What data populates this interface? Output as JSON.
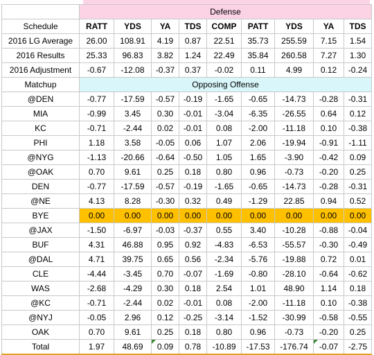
{
  "sections": {
    "defense_label": "Defense",
    "opposing_label": "Opposing Offense"
  },
  "columns": [
    "Schedule",
    "RATT",
    "YDS",
    "YA",
    "TDS",
    "COMP",
    "PATT",
    "YDS",
    "YA",
    "TDS"
  ],
  "summary_rows": [
    {
      "label": "2016 LG Average",
      "values": [
        "26.00",
        "108.91",
        "4.19",
        "0.87",
        "22.51",
        "35.73",
        "255.59",
        "7.15",
        "1.54"
      ]
    },
    {
      "label": "2016 Results",
      "values": [
        "25.33",
        "96.83",
        "3.82",
        "1.24",
        "22.49",
        "35.84",
        "260.58",
        "7.27",
        "1.30"
      ]
    },
    {
      "label": "2016 Adjustment",
      "values": [
        "-0.67",
        "-12.08",
        "-0.37",
        "0.37",
        "-0.02",
        "0.11",
        "4.99",
        "0.12",
        "-0.24"
      ]
    }
  ],
  "matchup_label": "Matchup",
  "matchup_rows": [
    {
      "label": "@DEN",
      "values": [
        "-0.77",
        "-17.59",
        "-0.57",
        "-0.19",
        "-1.65",
        "-0.65",
        "-14.73",
        "-0.28",
        "-0.31"
      ]
    },
    {
      "label": "MIA",
      "values": [
        "-0.99",
        "3.45",
        "0.30",
        "-0.01",
        "-3.04",
        "-6.35",
        "-26.55",
        "0.64",
        "0.12"
      ]
    },
    {
      "label": "KC",
      "values": [
        "-0.71",
        "-2.44",
        "0.02",
        "-0.01",
        "0.08",
        "-2.00",
        "-11.18",
        "0.10",
        "-0.38"
      ]
    },
    {
      "label": "PHI",
      "values": [
        "1.18",
        "3.58",
        "-0.05",
        "0.06",
        "1.07",
        "2.06",
        "-19.94",
        "-0.91",
        "-1.11"
      ]
    },
    {
      "label": "@NYG",
      "values": [
        "-1.13",
        "-20.66",
        "-0.64",
        "-0.50",
        "1.05",
        "1.65",
        "-3.90",
        "-0.42",
        "0.09"
      ]
    },
    {
      "label": "@OAK",
      "values": [
        "0.70",
        "9.61",
        "0.25",
        "0.18",
        "0.80",
        "0.96",
        "-0.73",
        "-0.20",
        "0.25"
      ]
    },
    {
      "label": "DEN",
      "values": [
        "-0.77",
        "-17.59",
        "-0.57",
        "-0.19",
        "-1.65",
        "-0.65",
        "-14.73",
        "-0.28",
        "-0.31"
      ]
    },
    {
      "label": "@NE",
      "values": [
        "4.13",
        "8.28",
        "-0.30",
        "0.32",
        "0.49",
        "-1.29",
        "22.85",
        "0.94",
        "0.52"
      ]
    },
    {
      "label": "BYE",
      "values": [
        "0.00",
        "0.00",
        "0.00",
        "0.00",
        "0.00",
        "0.00",
        "0.00",
        "0.00",
        "0.00"
      ],
      "bye": true
    },
    {
      "label": "@JAX",
      "values": [
        "-1.50",
        "-6.97",
        "-0.03",
        "-0.37",
        "0.55",
        "3.40",
        "-10.28",
        "-0.88",
        "-0.04"
      ]
    },
    {
      "label": "BUF",
      "values": [
        "4.31",
        "46.88",
        "0.95",
        "0.92",
        "-4.83",
        "-6.53",
        "-55.57",
        "-0.30",
        "-0.49"
      ]
    },
    {
      "label": "@DAL",
      "values": [
        "4.71",
        "39.75",
        "0.65",
        "0.56",
        "-2.34",
        "-5.76",
        "-19.88",
        "0.72",
        "0.01"
      ]
    },
    {
      "label": "CLE",
      "values": [
        "-4.44",
        "-3.45",
        "0.70",
        "-0.07",
        "-1.69",
        "-0.80",
        "-28.10",
        "-0.64",
        "-0.62"
      ]
    },
    {
      "label": "WAS",
      "values": [
        "-2.68",
        "-4.29",
        "0.30",
        "0.18",
        "2.54",
        "1.01",
        "48.90",
        "1.14",
        "0.18"
      ]
    },
    {
      "label": "@KC",
      "values": [
        "-0.71",
        "-2.44",
        "0.02",
        "-0.01",
        "0.08",
        "-2.00",
        "-11.18",
        "0.10",
        "-0.38"
      ]
    },
    {
      "label": "@NYJ",
      "values": [
        "-0.05",
        "2.96",
        "0.12",
        "-0.25",
        "-3.14",
        "-1.52",
        "-30.99",
        "-0.58",
        "-0.55"
      ]
    },
    {
      "label": "OAK",
      "values": [
        "0.70",
        "9.61",
        "0.25",
        "0.18",
        "0.80",
        "0.96",
        "-0.73",
        "-0.20",
        "0.25"
      ]
    }
  ],
  "total_row": {
    "label": "Total",
    "values": [
      "1.97",
      "48.69",
      "0.09",
      "0.78",
      "-10.89",
      "-17.53",
      "-176.74",
      "-0.07",
      "-2.75"
    ]
  },
  "colors": {
    "pink": "#fbd3e4",
    "cyan": "#d9f7fb",
    "bye": "#ffc000",
    "grid": "#c8c8c8"
  }
}
